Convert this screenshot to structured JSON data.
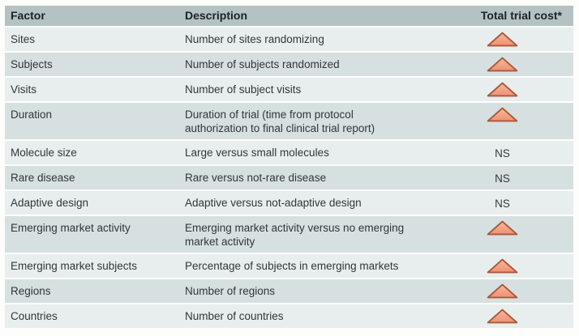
{
  "table": {
    "columns": [
      {
        "key": "factor",
        "label": "Factor"
      },
      {
        "key": "description",
        "label": "Description"
      },
      {
        "key": "cost",
        "label": "Total trial cost*"
      }
    ],
    "rows": [
      {
        "factor": "Sites",
        "description": "Number of sites randomizing",
        "cost": "up"
      },
      {
        "factor": "Subjects",
        "description": "Number of subjects randomized",
        "cost": "up"
      },
      {
        "factor": "Visits",
        "description": "Number of subject visits",
        "cost": "up"
      },
      {
        "factor": "Duration",
        "description": "Duration of trial (time from protocol\nauthorization to final clinical trial report)",
        "cost": "up"
      },
      {
        "factor": "Molecule size",
        "description": "Large versus small molecules",
        "cost": "NS"
      },
      {
        "factor": "Rare disease",
        "description": "Rare versus not-rare disease",
        "cost": "NS"
      },
      {
        "factor": "Adaptive design",
        "description": "Adaptive versus not-adaptive design",
        "cost": "NS"
      },
      {
        "factor": "Emerging market activity",
        "description": "Emerging market activity versus no emerging\nmarket activity",
        "cost": "up"
      },
      {
        "factor": "Emerging market subjects",
        "description": "Percentage of subjects in emerging markets",
        "cost": "up"
      },
      {
        "factor": "Regions",
        "description": "Number of regions",
        "cost": "up"
      },
      {
        "factor": "Countries",
        "description": "Number of countries",
        "cost": "up"
      }
    ],
    "icons": {
      "cost_increase": "triangle-up-icon"
    },
    "colors": {
      "header_bg": "#b4c2c3",
      "row_light": "#e8eeed",
      "row_dark": "#d6e0e0",
      "triangle_fill_top": "#f6b89d",
      "triangle_fill_bottom": "#ee9170",
      "triangle_border": "#a9573a"
    }
  }
}
